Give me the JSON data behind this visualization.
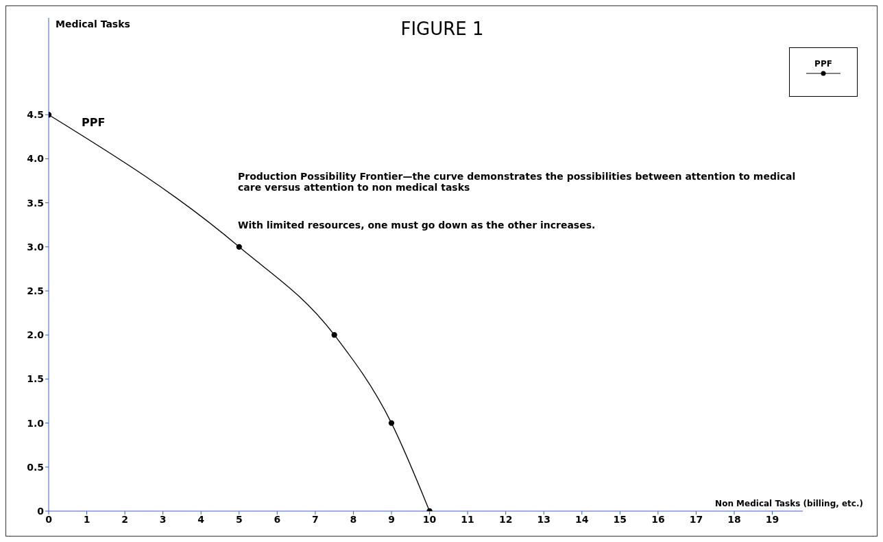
{
  "chart_data": {
    "type": "line",
    "title": "FIGURE 1",
    "xlabel": "Non Medical Tasks (billing, etc.)",
    "ylabel": "Medical Tasks",
    "x": [
      0,
      5,
      7.5,
      9,
      10
    ],
    "series": [
      {
        "name": "PPF",
        "color": "#000000",
        "values": [
          4.5,
          3,
          2,
          1,
          0
        ]
      }
    ],
    "xlim": [
      0,
      19.8
    ],
    "xticks": [
      0,
      1,
      2,
      3,
      4,
      5,
      6,
      7,
      8,
      9,
      10,
      11,
      12,
      13,
      14,
      15,
      16,
      17,
      18,
      19
    ],
    "ylim": [
      0,
      5.6
    ],
    "yticks": [
      0,
      {
        "value": 0.5,
        "label": "0.5"
      },
      {
        "value": 1,
        "label": "1.0"
      },
      {
        "value": 1.5,
        "label": "1.5"
      },
      {
        "value": 2,
        "label": "2.0"
      },
      {
        "value": 2.5,
        "label": "2.5"
      },
      {
        "value": 3,
        "label": "3.0"
      },
      {
        "value": 3.5,
        "label": "3.5"
      },
      {
        "value": 4,
        "label": "4.0"
      },
      {
        "value": 4.5,
        "label": "4.5"
      }
    ],
    "annotations": [
      "PPF",
      "Production Possibility Frontier—the curve demonstrates the possibilities between attention to medical care versus attention to non medical tasks",
      "With limited resources, one must go down as the other increases."
    ],
    "grid": false,
    "legend": "top right",
    "marker": "circle",
    "line_style": "solid"
  }
}
